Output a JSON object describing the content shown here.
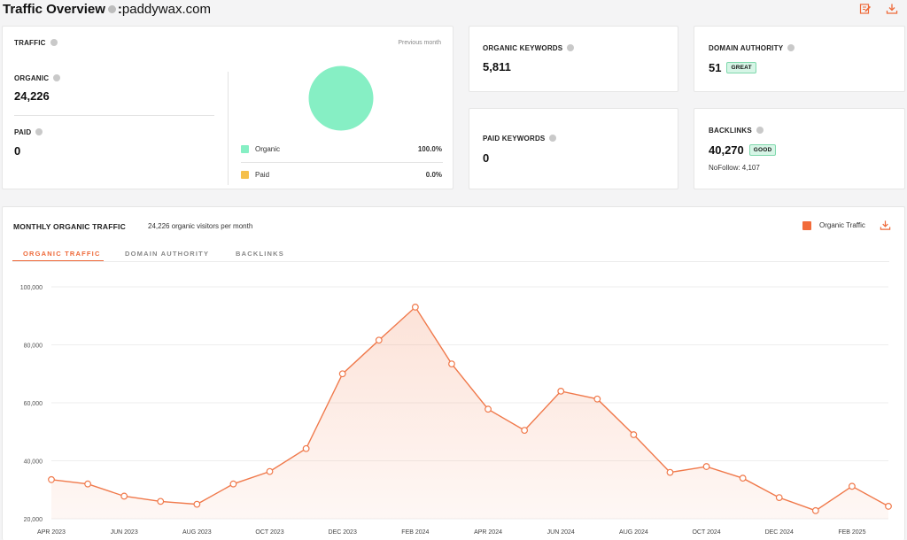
{
  "header": {
    "title": "Traffic Overview",
    "separator": ":",
    "domain": "paddywax.com",
    "edit_icon": "edit-report-icon",
    "download_icon": "download-icon"
  },
  "traffic_card": {
    "label": "TRAFFIC",
    "period": "Previous month",
    "organic_label": "ORGANIC",
    "organic_value": "24,226",
    "paid_label": "PAID",
    "paid_value": "0",
    "legend": [
      {
        "label": "Organic",
        "value": "100.0%",
        "color": "#86efc4"
      },
      {
        "label": "Paid",
        "value": "0.0%",
        "color": "#f5c04c"
      }
    ],
    "pie_color": "#86efc4"
  },
  "organic_keywords": {
    "label": "ORGANIC KEYWORDS",
    "value": "5,811"
  },
  "paid_keywords": {
    "label": "PAID KEYWORDS",
    "value": "0"
  },
  "domain_authority": {
    "label": "DOMAIN AUTHORITY",
    "value": "51",
    "badge": "GREAT"
  },
  "backlinks": {
    "label": "BACKLINKS",
    "value": "40,270",
    "badge": "GOOD",
    "nofollow": "NoFollow: 4,107"
  },
  "monthly": {
    "title": "MONTHLY ORGANIC TRAFFIC",
    "subtitle": "24,226 organic visitors per month",
    "legend_label": "Organic Traffic",
    "legend_color": "#f26b3a",
    "tabs": [
      "ORGANIC TRAFFIC",
      "DOMAIN AUTHORITY",
      "BACKLINKS"
    ],
    "active_tab": 0
  },
  "chart_data": {
    "type": "area",
    "series": [
      {
        "name": "Organic Traffic",
        "color": "#f0794b"
      }
    ],
    "y_ticks": [
      "100,000",
      "80,000",
      "60,000",
      "40,000",
      "20,000"
    ],
    "ylim": [
      20000,
      100000
    ],
    "x_labels": [
      "APR 2023",
      "JUN 2023",
      "AUG 2023",
      "OCT 2023",
      "DEC 2023",
      "FEB 2024",
      "APR 2024",
      "JUN 2024",
      "AUG 2024",
      "OCT 2024",
      "DEC 2024",
      "FEB 2025"
    ],
    "x": [
      "2023-04",
      "2023-05",
      "2023-06",
      "2023-07",
      "2023-08",
      "2023-09",
      "2023-10",
      "2023-11",
      "2023-12",
      "2024-01",
      "2024-02",
      "2024-03",
      "2024-04",
      "2024-05",
      "2024-06",
      "2024-07",
      "2024-08",
      "2024-09",
      "2024-10",
      "2024-11",
      "2024-12",
      "2025-01",
      "2025-02",
      "2025-03"
    ],
    "values": [
      33500,
      32000,
      27800,
      26000,
      25000,
      32000,
      36300,
      44200,
      70000,
      81600,
      93000,
      73400,
      57800,
      50500,
      64000,
      61300,
      49000,
      36000,
      38000,
      34000,
      27300,
      22800,
      31200,
      24300
    ]
  }
}
